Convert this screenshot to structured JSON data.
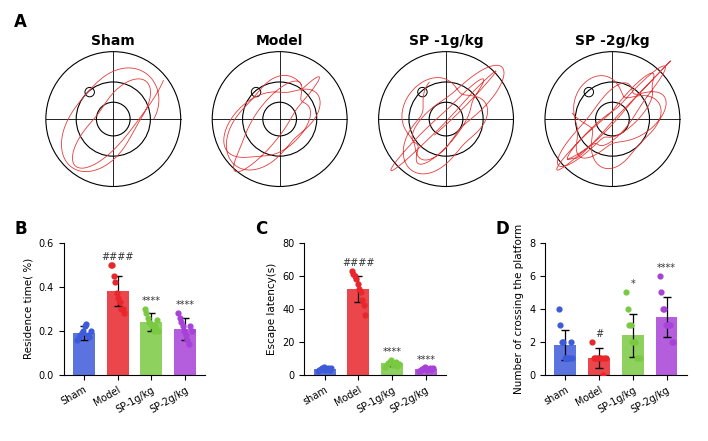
{
  "panel_labels": [
    "A",
    "B",
    "C",
    "D"
  ],
  "maze": {
    "titles": [
      "Sham",
      "Model",
      "SP -1g/kg",
      "SP -2g/kg"
    ]
  },
  "chart_data": [
    {
      "type": "bar",
      "y_label": "Residence time( %)",
      "categories": [
        "Sham",
        "Model",
        "SP-1g/kg",
        "SP-2g/kg"
      ],
      "values": [
        0.19,
        0.38,
        0.24,
        0.21
      ],
      "errors": [
        0.03,
        0.07,
        0.04,
        0.05
      ],
      "points": [
        [
          0.16,
          0.17,
          0.18,
          0.19,
          0.2,
          0.22,
          0.23,
          0.18,
          0.17,
          0.2
        ],
        [
          0.5,
          0.5,
          0.45,
          0.42,
          0.37,
          0.35,
          0.33,
          0.3,
          0.3,
          0.28
        ],
        [
          0.3,
          0.28,
          0.26,
          0.24,
          0.23,
          0.22,
          0.2,
          0.22,
          0.25,
          0.2
        ],
        [
          0.28,
          0.26,
          0.24,
          0.22,
          0.2,
          0.18,
          0.16,
          0.14,
          0.22,
          0.2
        ]
      ],
      "colors": [
        "#3d5bd9",
        "#e8262b",
        "#7ac943",
        "#a742d8"
      ],
      "annotations": [
        {
          "category": "Model",
          "text": "####"
        },
        {
          "category": "SP-1g/kg",
          "text": "****"
        },
        {
          "category": "SP-2g/kg",
          "text": "****"
        }
      ],
      "ylim": [
        0,
        0.6
      ],
      "yticks": [
        {
          "value": 0,
          "label": "0.0"
        },
        {
          "value": 0.2,
          "label": "0.2"
        },
        {
          "value": 0.4,
          "label": "0.4"
        },
        {
          "value": 0.6,
          "label": "0.6"
        }
      ]
    },
    {
      "type": "bar",
      "y_label": "Escape latency(s)",
      "categories": [
        "sham",
        "Model",
        "SP-1g/kg",
        "SP-2g/kg"
      ],
      "values": [
        3.5,
        52,
        7,
        3.5
      ],
      "errors": [
        0.8,
        8,
        1.5,
        0.8
      ],
      "points": [
        [
          2.5,
          3,
          3.5,
          4,
          4.5,
          3,
          3.5,
          4,
          2.8,
          4.2
        ],
        [
          63,
          61,
          60,
          58,
          55,
          52,
          50,
          45,
          42,
          36
        ],
        [
          5,
          6,
          7,
          8,
          9,
          6,
          7,
          8,
          5.5,
          6.5
        ],
        [
          2.5,
          3,
          3.5,
          4,
          4.5,
          3,
          3.5,
          4,
          2.8,
          4.2
        ]
      ],
      "colors": [
        "#3d5bd9",
        "#e8262b",
        "#7ac943",
        "#a742d8"
      ],
      "annotations": [
        {
          "category": "Model",
          "text": "####"
        },
        {
          "category": "SP-1g/kg",
          "text": "****"
        },
        {
          "category": "SP-2g/kg",
          "text": "****"
        }
      ],
      "ylim": [
        0,
        80
      ],
      "yticks": [
        0,
        20,
        40,
        60,
        80
      ]
    },
    {
      "type": "bar",
      "y_label": "Number of crossing the platform",
      "categories": [
        "sham",
        "Model",
        "SP-1g/kg",
        "SP-2g/kg"
      ],
      "values": [
        1.8,
        1.0,
        2.4,
        3.5
      ],
      "errors": [
        0.9,
        0.6,
        1.3,
        1.2
      ],
      "points": [
        [
          4,
          3,
          2,
          2,
          1,
          1,
          1,
          1,
          2,
          1
        ],
        [
          2,
          1,
          1,
          1,
          1,
          1,
          1,
          0,
          1,
          1
        ],
        [
          5,
          4,
          3,
          3,
          2,
          2,
          2,
          1,
          1,
          1
        ],
        [
          6,
          5,
          4,
          4,
          3,
          3,
          3,
          3,
          2,
          2
        ]
      ],
      "colors": [
        "#3d5bd9",
        "#e8262b",
        "#7ac943",
        "#a742d8"
      ],
      "annotations": [
        {
          "category": "Model",
          "text": "#"
        },
        {
          "category": "SP-1g/kg",
          "text": "*"
        },
        {
          "category": "SP-2g/kg",
          "text": "****"
        }
      ],
      "ylim": [
        0,
        8
      ],
      "yticks": [
        0,
        2,
        4,
        6,
        8
      ]
    }
  ]
}
